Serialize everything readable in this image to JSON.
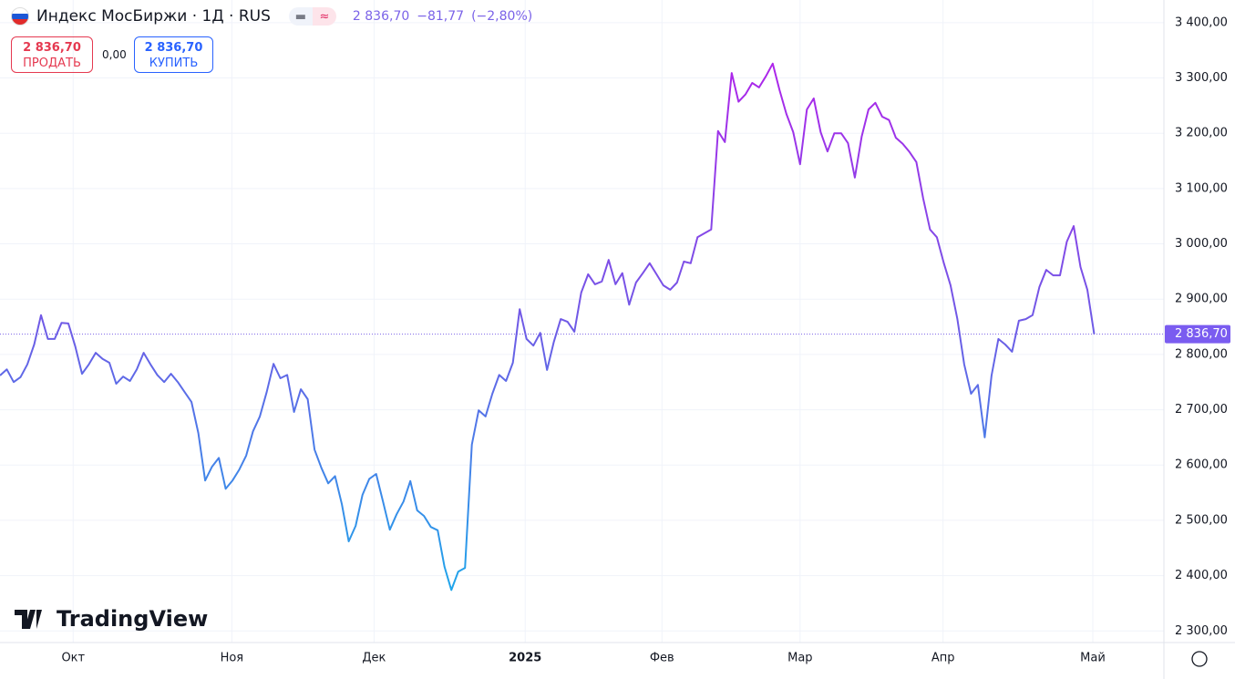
{
  "header": {
    "title": "Индекс МосБиржи · 1Д · RUS",
    "price": "2 836,70",
    "change": "−81,77",
    "change_pct": "(−2,80%)"
  },
  "trade": {
    "sell_price": "2 836,70",
    "sell_label": "ПРОДАТЬ",
    "spread": "0,00",
    "buy_price": "2 836,70",
    "buy_label": "КУПИТЬ"
  },
  "logo": "TradingView",
  "chart_data": {
    "type": "line",
    "last_label": "2 836,70",
    "gradient": [
      "#b023ea",
      "#6f5ae6",
      "#1ea6ea"
    ],
    "values": [
      2762,
      2773,
      2750,
      2759,
      2782,
      2818,
      2871,
      2828,
      2828,
      2857,
      2856,
      2815,
      2765,
      2782,
      2803,
      2792,
      2785,
      2747,
      2760,
      2752,
      2773,
      2803,
      2782,
      2763,
      2750,
      2765,
      2750,
      2732,
      2714,
      2658,
      2572,
      2597,
      2613,
      2557,
      2572,
      2592,
      2617,
      2661,
      2688,
      2732,
      2783,
      2757,
      2763,
      2696,
      2737,
      2719,
      2628,
      2595,
      2567,
      2580,
      2529,
      2462,
      2490,
      2546,
      2575,
      2584,
      2534,
      2483,
      2511,
      2534,
      2571,
      2518,
      2508,
      2488,
      2482,
      2416,
      2374,
      2407,
      2414,
      2637,
      2699,
      2688,
      2729,
      2763,
      2752,
      2785,
      2882,
      2828,
      2816,
      2839,
      2772,
      2823,
      2864,
      2859,
      2841,
      2912,
      2945,
      2927,
      2932,
      2971,
      2927,
      2947,
      2890,
      2930,
      2947,
      2965,
      2945,
      2925,
      2917,
      2930,
      2968,
      2965,
      3012,
      3019,
      3026,
      3204,
      3184,
      3309,
      3257,
      3270,
      3291,
      3283,
      3303,
      3326,
      3278,
      3235,
      3202,
      3144,
      3243,
      3263,
      3202,
      3167,
      3200,
      3200,
      3182,
      3120,
      3194,
      3243,
      3255,
      3230,
      3224,
      3192,
      3181,
      3166,
      3148,
      3082,
      3026,
      3012,
      2966,
      2925,
      2864,
      2782,
      2729,
      2745,
      2650,
      2762,
      2828,
      2818,
      2805,
      2861,
      2864,
      2871,
      2922,
      2953,
      2943,
      2943,
      3004,
      3032,
      2958,
      2917,
      2836.7
    ],
    "xlim": [
      0,
      170.2
    ],
    "xticks": [
      {
        "value": 10.7,
        "label": "Окт"
      },
      {
        "value": 33.9,
        "label": "Ноя"
      },
      {
        "value": 54.7,
        "label": "Дек"
      },
      {
        "value": 76.8,
        "label": "2025"
      },
      {
        "value": 96.8,
        "label": "Фев"
      },
      {
        "value": 117,
        "label": "Мар"
      },
      {
        "value": 137.9,
        "label": "Апр"
      },
      {
        "value": 159.8,
        "label": "Май"
      }
    ],
    "ylim": [
      2279,
      3441
    ],
    "yticks": [
      {
        "value": 2300,
        "label": "2 300,00"
      },
      {
        "value": 2400,
        "label": "2 400,00"
      },
      {
        "value": 2500,
        "label": "2 500,00"
      },
      {
        "value": 2600,
        "label": "2 600,00"
      },
      {
        "value": 2700,
        "label": "2 700,00"
      },
      {
        "value": 2800,
        "label": "2 800,00"
      },
      {
        "value": 2900,
        "label": "2 900,00"
      },
      {
        "value": 3000,
        "label": "3 000,00"
      },
      {
        "value": 3100,
        "label": "3 100,00"
      },
      {
        "value": 3200,
        "label": "3 200,00"
      },
      {
        "value": 3300,
        "label": "3 300,00"
      },
      {
        "value": 3400,
        "label": "3 400,00"
      }
    ],
    "grid": true
  }
}
